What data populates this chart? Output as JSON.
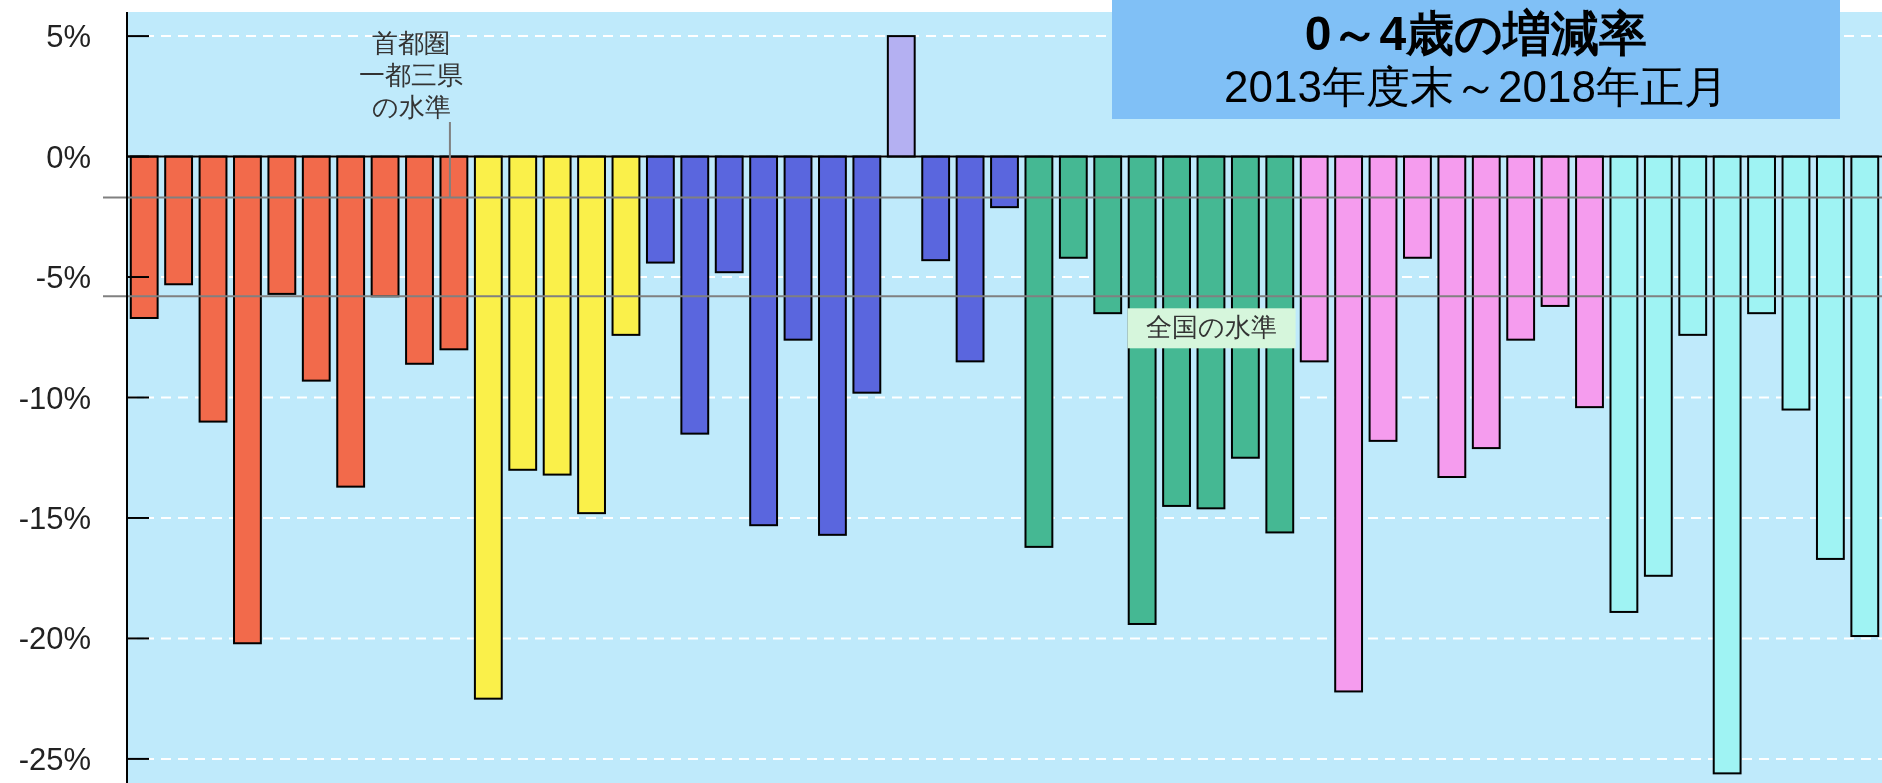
{
  "chart_data": {
    "type": "bar",
    "title": "0～4歳の増減率",
    "subtitle": "2013年度末～2018年正月",
    "categories": [
      null,
      null,
      null,
      null,
      null,
      null,
      null,
      null,
      null,
      null,
      null,
      null,
      null,
      null,
      null,
      null,
      null,
      null,
      null,
      null,
      null,
      null,
      null,
      null,
      null,
      null,
      null,
      null,
      null,
      null,
      null,
      null,
      null,
      null,
      null,
      null,
      null,
      null,
      null,
      null,
      null,
      null,
      null,
      null,
      null,
      null,
      null,
      null,
      null,
      null,
      null
    ],
    "values": [
      -6.7,
      -5.3,
      -11.0,
      -20.2,
      -5.7,
      -9.3,
      -13.7,
      -5.8,
      -8.6,
      -8.0,
      -22.5,
      -13.0,
      -13.2,
      -14.8,
      -7.4,
      -4.4,
      -11.5,
      -4.8,
      -15.3,
      -7.6,
      -15.7,
      -9.8,
      5.0,
      -4.3,
      -8.5,
      -2.1,
      -16.2,
      -4.2,
      -6.5,
      -19.4,
      -14.5,
      -14.6,
      -12.5,
      -15.6,
      -8.5,
      -22.2,
      -11.8,
      -4.2,
      -13.3,
      -12.1,
      -7.6,
      -6.2,
      -10.4,
      -18.9,
      -17.4,
      -7.4,
      -25.6,
      -6.5,
      -10.5,
      -16.7,
      -19.9
    ],
    "colors": [
      "#f26a4b",
      "#f26a4b",
      "#f26a4b",
      "#f26a4b",
      "#f26a4b",
      "#f26a4b",
      "#f26a4b",
      "#f26a4b",
      "#f26a4b",
      "#f26a4b",
      "#faf04a",
      "#faf04a",
      "#faf04a",
      "#faf04a",
      "#faf04a",
      "#5a66de",
      "#5a66de",
      "#5a66de",
      "#5a66de",
      "#5a66de",
      "#5a66de",
      "#5a66de",
      "#b4b0f2",
      "#5a66de",
      "#5a66de",
      "#5a66de",
      "#45b893",
      "#45b893",
      "#45b893",
      "#45b893",
      "#45b893",
      "#45b893",
      "#45b893",
      "#45b893",
      "#f59cee",
      "#f59cee",
      "#f59cee",
      "#f59cee",
      "#f59cee",
      "#f59cee",
      "#f59cee",
      "#f59cee",
      "#f59cee",
      "#9ff3f3",
      "#9ff3f3",
      "#9ff3f3",
      "#9ff3f3",
      "#9ff3f3",
      "#9ff3f3",
      "#9ff3f3",
      "#9ff3f3"
    ],
    "ylim": [
      -26,
      6
    ],
    "yticks": [
      {
        "value": 5,
        "label": "5%"
      },
      {
        "value": 0,
        "label": "0%"
      },
      {
        "value": -5,
        "label": "-5%"
      },
      {
        "value": -10,
        "label": "-10%"
      },
      {
        "value": -15,
        "label": "-15%"
      },
      {
        "value": -20,
        "label": "-20%"
      },
      {
        "value": -25,
        "label": "-25%"
      }
    ],
    "grid": "y",
    "tick_labels": "y",
    "ref_lines": [
      {
        "axis": "y",
        "value": -1.7,
        "label": "首都圏一都三県の水準",
        "color": "#808080"
      },
      {
        "axis": "y",
        "value": -5.8,
        "label": "全国の水準",
        "color": "#808080"
      }
    ]
  }
}
